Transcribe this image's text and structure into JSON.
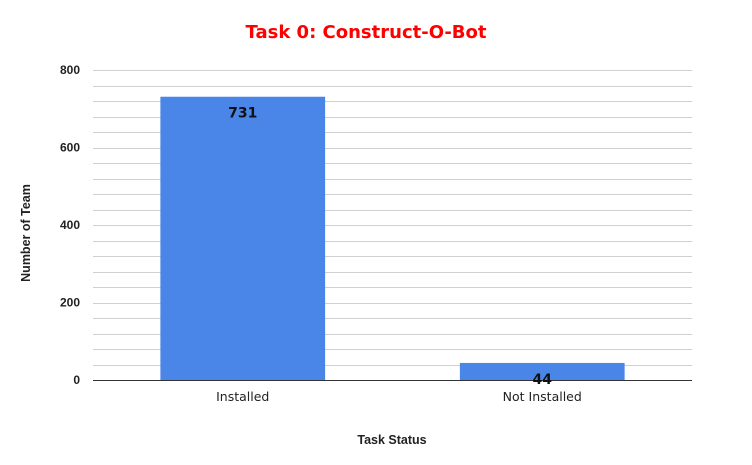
{
  "chart_data": {
    "type": "bar",
    "title": "Task 0: Construct-O-Bot",
    "xlabel": "Task Status",
    "ylabel": "Number of Team",
    "categories": [
      "Installed",
      "Not Installed"
    ],
    "values": [
      731,
      44
    ],
    "data_labels": [
      "731",
      "44"
    ],
    "ylim": [
      0,
      800
    ],
    "yticks": [
      0,
      200,
      400,
      600,
      800
    ],
    "ytick_labels": [
      "0",
      "200",
      "400",
      "600",
      "800"
    ],
    "grid": true,
    "legend": "none",
    "colors": {
      "bar": "#4a86e8",
      "title": "#ff0000",
      "gridline": "#d0d0d0",
      "baseline": "#333333"
    }
  }
}
